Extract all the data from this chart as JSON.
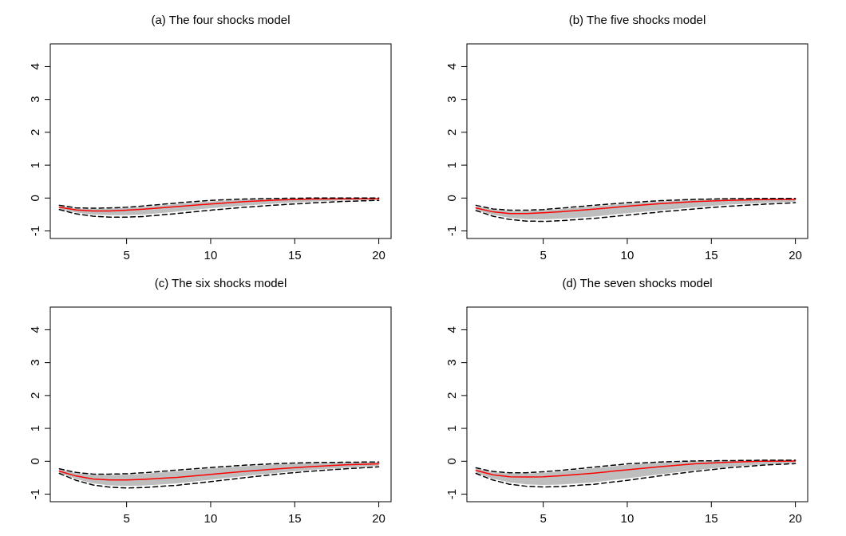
{
  "chart_data": [
    {
      "type": "line",
      "title": "(a) The four shocks model",
      "x": [
        1,
        2,
        3,
        4,
        5,
        6,
        8,
        10,
        12,
        14,
        16,
        18,
        20
      ],
      "xlim": [
        0.46,
        20.73
      ],
      "ylim": [
        -1.23,
        4.69
      ],
      "xticks": [
        5,
        10,
        15,
        20
      ],
      "yticks": [
        -1,
        0,
        1,
        2,
        3,
        4
      ],
      "series": [
        {
          "color": "#ff0000",
          "values": [
            -0.28,
            -0.36,
            -0.39,
            -0.39,
            -0.37,
            -0.34,
            -0.26,
            -0.18,
            -0.11,
            -0.06,
            -0.03,
            -0.02,
            -0.02
          ],
          "lower": [
            -0.33,
            -0.44,
            -0.5,
            -0.52,
            -0.52,
            -0.5,
            -0.41,
            -0.31,
            -0.23,
            -0.16,
            -0.11,
            -0.07,
            -0.05
          ],
          "upper": [
            -0.24,
            -0.32,
            -0.33,
            -0.32,
            -0.3,
            -0.27,
            -0.18,
            -0.1,
            -0.05,
            -0.02,
            -0.01,
            -0.01,
            -0.01
          ]
        },
        {
          "color": "#000000",
          "line_style": "dashed",
          "values": [
            -0.22,
            -0.3,
            -0.31,
            -0.3,
            -0.28,
            -0.24,
            -0.15,
            -0.07,
            -0.03,
            -0.01,
            0,
            0,
            0
          ]
        },
        {
          "color": "#000000",
          "line_style": "dashed",
          "values": [
            -0.35,
            -0.48,
            -0.55,
            -0.58,
            -0.58,
            -0.56,
            -0.47,
            -0.37,
            -0.28,
            -0.21,
            -0.15,
            -0.1,
            -0.07
          ]
        }
      ]
    },
    {
      "type": "line",
      "title": "(b) The five shocks model",
      "x": [
        1,
        2,
        3,
        4,
        5,
        6,
        8,
        10,
        12,
        14,
        16,
        18,
        20
      ],
      "xlim": [
        0.46,
        20.73
      ],
      "ylim": [
        -1.23,
        4.69
      ],
      "xticks": [
        5,
        10,
        15,
        20
      ],
      "yticks": [
        -1,
        0,
        1,
        2,
        3,
        4
      ],
      "series": [
        {
          "color": "#ff0000",
          "values": [
            -0.3,
            -0.42,
            -0.47,
            -0.47,
            -0.45,
            -0.42,
            -0.34,
            -0.25,
            -0.17,
            -0.11,
            -0.07,
            -0.05,
            -0.04
          ],
          "lower": [
            -0.36,
            -0.51,
            -0.6,
            -0.64,
            -0.65,
            -0.63,
            -0.56,
            -0.46,
            -0.37,
            -0.28,
            -0.2,
            -0.15,
            -0.11
          ],
          "upper": [
            -0.24,
            -0.35,
            -0.39,
            -0.39,
            -0.37,
            -0.34,
            -0.25,
            -0.17,
            -0.1,
            -0.06,
            -0.03,
            -0.02,
            -0.02
          ]
        },
        {
          "color": "#000000",
          "line_style": "dashed",
          "values": [
            -0.22,
            -0.33,
            -0.37,
            -0.37,
            -0.35,
            -0.31,
            -0.22,
            -0.14,
            -0.08,
            -0.04,
            -0.02,
            -0.01,
            -0.01
          ]
        },
        {
          "color": "#000000",
          "line_style": "dashed",
          "values": [
            -0.38,
            -0.55,
            -0.65,
            -0.7,
            -0.71,
            -0.69,
            -0.62,
            -0.52,
            -0.42,
            -0.33,
            -0.25,
            -0.19,
            -0.14
          ]
        }
      ]
    },
    {
      "type": "line",
      "title": "(c) The six shocks model",
      "x": [
        1,
        2,
        3,
        4,
        5,
        6,
        8,
        10,
        12,
        14,
        16,
        18,
        20
      ],
      "xlim": [
        0.46,
        20.73
      ],
      "ylim": [
        -1.23,
        4.69
      ],
      "xticks": [
        5,
        10,
        15,
        20
      ],
      "yticks": [
        -1,
        0,
        1,
        2,
        3,
        4
      ],
      "series": [
        {
          "color": "#ff0000",
          "values": [
            -0.3,
            -0.45,
            -0.54,
            -0.57,
            -0.57,
            -0.55,
            -0.49,
            -0.4,
            -0.31,
            -0.23,
            -0.16,
            -0.11,
            -0.08
          ],
          "lower": [
            -0.35,
            -0.54,
            -0.67,
            -0.73,
            -0.75,
            -0.74,
            -0.67,
            -0.56,
            -0.45,
            -0.35,
            -0.26,
            -0.2,
            -0.14
          ],
          "upper": [
            -0.25,
            -0.36,
            -0.41,
            -0.42,
            -0.41,
            -0.38,
            -0.3,
            -0.22,
            -0.15,
            -0.09,
            -0.06,
            -0.04,
            -0.03
          ]
        },
        {
          "color": "#000000",
          "line_style": "dashed",
          "values": [
            -0.23,
            -0.34,
            -0.39,
            -0.39,
            -0.38,
            -0.35,
            -0.27,
            -0.19,
            -0.12,
            -0.07,
            -0.04,
            -0.03,
            -0.02
          ]
        },
        {
          "color": "#000000",
          "line_style": "dashed",
          "values": [
            -0.37,
            -0.58,
            -0.72,
            -0.79,
            -0.81,
            -0.8,
            -0.73,
            -0.62,
            -0.5,
            -0.39,
            -0.3,
            -0.23,
            -0.17
          ]
        }
      ]
    },
    {
      "type": "line",
      "title": "(d) The seven shocks model",
      "x": [
        1,
        2,
        3,
        4,
        5,
        6,
        8,
        10,
        12,
        14,
        16,
        18,
        20
      ],
      "xlim": [
        0.46,
        20.73
      ],
      "ylim": [
        -1.23,
        4.69
      ],
      "xticks": [
        5,
        10,
        15,
        20
      ],
      "yticks": [
        -1,
        0,
        1,
        2,
        3,
        4
      ],
      "series": [
        {
          "color": "#ff0000",
          "values": [
            -0.28,
            -0.41,
            -0.47,
            -0.48,
            -0.47,
            -0.44,
            -0.36,
            -0.26,
            -0.16,
            -0.08,
            -0.03,
            0,
            0.01
          ],
          "lower": [
            -0.35,
            -0.53,
            -0.64,
            -0.7,
            -0.72,
            -0.71,
            -0.64,
            -0.52,
            -0.39,
            -0.27,
            -0.17,
            -0.1,
            -0.05
          ],
          "upper": [
            -0.22,
            -0.33,
            -0.37,
            -0.37,
            -0.35,
            -0.31,
            -0.21,
            -0.11,
            -0.04,
            0,
            0.01,
            0.02,
            0.02
          ]
        },
        {
          "color": "#000000",
          "line_style": "dashed",
          "values": [
            -0.2,
            -0.31,
            -0.35,
            -0.35,
            -0.32,
            -0.28,
            -0.18,
            -0.08,
            -0.02,
            0.01,
            0.02,
            0.03,
            0.03
          ]
        },
        {
          "color": "#000000",
          "line_style": "dashed",
          "values": [
            -0.37,
            -0.57,
            -0.7,
            -0.76,
            -0.78,
            -0.77,
            -0.7,
            -0.58,
            -0.44,
            -0.31,
            -0.2,
            -0.12,
            -0.07
          ]
        }
      ]
    }
  ]
}
